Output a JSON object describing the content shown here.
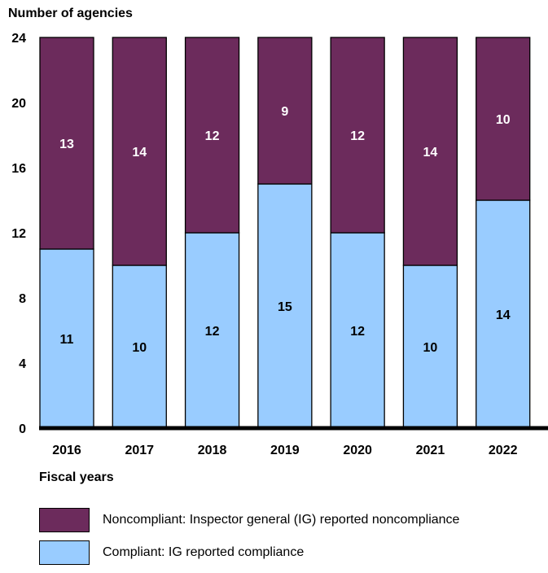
{
  "chart_data": {
    "type": "bar",
    "stacked": true,
    "ylabel": "Number of agencies",
    "xlabel": "Fiscal years",
    "categories": [
      "2016",
      "2017",
      "2018",
      "2019",
      "2020",
      "2021",
      "2022"
    ],
    "ylim": [
      0,
      24
    ],
    "yticks": [
      "0",
      "4",
      "8",
      "12",
      "16",
      "20",
      "24"
    ],
    "grid": false,
    "legend_position": "bottom",
    "series": [
      {
        "name": "Compliant: IG reported compliance",
        "values": [
          11,
          10,
          12,
          15,
          12,
          10,
          14
        ],
        "color": "#99ccff"
      },
      {
        "name": "Noncompliant: Inspector general (IG) reported noncompliance",
        "values": [
          13,
          14,
          12,
          9,
          12,
          14,
          10
        ],
        "color": "#6c2b5c"
      }
    ]
  }
}
